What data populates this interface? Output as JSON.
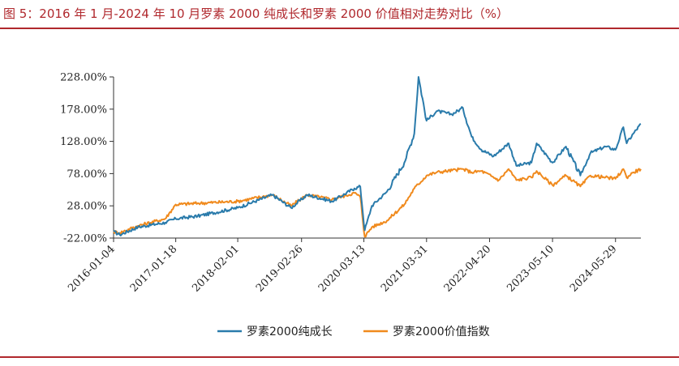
{
  "title": "图 5：2016 年 1 月-2024 年 10 月罗素 2000 纯成长和罗素 2000 价值相对走势对比（%）",
  "colors": {
    "accent": "#b0282d",
    "growth": "#2a7bab",
    "value": "#f08a1d"
  },
  "chart_data": {
    "type": "line",
    "title": "图 5：2016 年 1 月-2024 年 10 月罗素 2000 纯成长和罗素 2000 价值相对走势对比（%）",
    "xlabel": "",
    "ylabel": "",
    "ylim": [
      -22,
      228
    ],
    "y_ticks": [
      "228.00%",
      "178.00%",
      "128.00%",
      "78.00%",
      "28.00%",
      "-22.00%"
    ],
    "y_tick_values": [
      228,
      178,
      128,
      78,
      28,
      -22
    ],
    "x_ticks": [
      "2016-01-04",
      "2017-01-18",
      "2018-02-01",
      "2019-02-26",
      "2020-03-13",
      "2021-03-31",
      "2022-04-20",
      "2023-05-10",
      "2024-05-29"
    ],
    "x_range": [
      "2016-01-04",
      "2024-10-31"
    ],
    "grid": false,
    "legend_position": "bottom",
    "series": [
      {
        "name": "罗素2000纯成长",
        "color": "#2a7bab",
        "points": [
          [
            "2016-01-04",
            -12
          ],
          [
            "2016-02-11",
            -17
          ],
          [
            "2016-06-01",
            -5
          ],
          [
            "2016-11-15",
            2
          ],
          [
            "2017-01-18",
            8
          ],
          [
            "2017-06-01",
            12
          ],
          [
            "2018-02-01",
            25
          ],
          [
            "2018-09-01",
            45
          ],
          [
            "2018-12-24",
            25
          ],
          [
            "2019-04-01",
            45
          ],
          [
            "2019-09-01",
            35
          ],
          [
            "2020-01-15",
            55
          ],
          [
            "2020-02-20",
            58
          ],
          [
            "2020-03-18",
            -10
          ],
          [
            "2020-05-01",
            28
          ],
          [
            "2020-08-01",
            50
          ],
          [
            "2020-11-15",
            95
          ],
          [
            "2021-01-15",
            140
          ],
          [
            "2021-02-10",
            228
          ],
          [
            "2021-03-31",
            160
          ],
          [
            "2021-06-01",
            175
          ],
          [
            "2021-09-01",
            170
          ],
          [
            "2021-11-08",
            180
          ],
          [
            "2022-01-01",
            135
          ],
          [
            "2022-03-01",
            115
          ],
          [
            "2022-05-15",
            105
          ],
          [
            "2022-08-15",
            125
          ],
          [
            "2022-10-01",
            90
          ],
          [
            "2023-01-01",
            95
          ],
          [
            "2023-02-02",
            125
          ],
          [
            "2023-05-10",
            95
          ],
          [
            "2023-07-31",
            120
          ],
          [
            "2023-10-27",
            75
          ],
          [
            "2023-12-28",
            110
          ],
          [
            "2024-03-28",
            120
          ],
          [
            "2024-05-29",
            115
          ],
          [
            "2024-07-16",
            150
          ],
          [
            "2024-08-05",
            125
          ],
          [
            "2024-09-15",
            140
          ],
          [
            "2024-10-31",
            155
          ]
        ]
      },
      {
        "name": "罗素2000价值指数",
        "color": "#f08a1d",
        "points": [
          [
            "2016-01-04",
            -12
          ],
          [
            "2016-02-11",
            -14
          ],
          [
            "2016-06-01",
            -3
          ],
          [
            "2016-11-15",
            8
          ],
          [
            "2017-01-18",
            30
          ],
          [
            "2017-06-01",
            32
          ],
          [
            "2018-02-01",
            35
          ],
          [
            "2018-09-01",
            45
          ],
          [
            "2018-12-24",
            28
          ],
          [
            "2019-04-01",
            45
          ],
          [
            "2019-09-01",
            38
          ],
          [
            "2020-01-15",
            48
          ],
          [
            "2020-02-20",
            42
          ],
          [
            "2020-03-18",
            -20
          ],
          [
            "2020-05-01",
            -5
          ],
          [
            "2020-08-01",
            5
          ],
          [
            "2020-11-15",
            30
          ],
          [
            "2021-01-15",
            55
          ],
          [
            "2021-03-31",
            75
          ],
          [
            "2021-06-01",
            80
          ],
          [
            "2021-11-08",
            85
          ],
          [
            "2022-01-01",
            80
          ],
          [
            "2022-03-01",
            82
          ],
          [
            "2022-06-16",
            68
          ],
          [
            "2022-08-15",
            85
          ],
          [
            "2022-10-01",
            68
          ],
          [
            "2023-01-01",
            72
          ],
          [
            "2023-02-02",
            82
          ],
          [
            "2023-05-10",
            60
          ],
          [
            "2023-07-31",
            75
          ],
          [
            "2023-10-27",
            58
          ],
          [
            "2023-12-28",
            75
          ],
          [
            "2024-03-28",
            72
          ],
          [
            "2024-05-29",
            70
          ],
          [
            "2024-07-16",
            85
          ],
          [
            "2024-08-05",
            72
          ],
          [
            "2024-09-15",
            80
          ],
          [
            "2024-10-31",
            85
          ]
        ]
      }
    ]
  }
}
